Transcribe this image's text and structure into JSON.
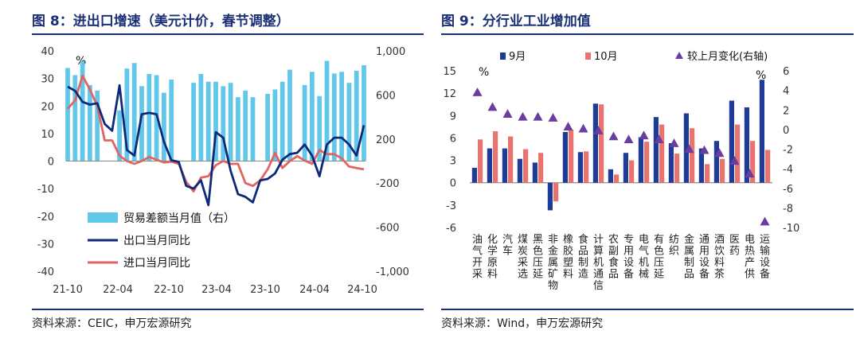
{
  "colors": {
    "title": "#1b2f74",
    "export_line": "#0d2a7a",
    "import_line": "#e06464",
    "trade_bar": "#62c8ea",
    "sep": "#1e3c96",
    "oct": "#e8736f",
    "mom": "#6a3da0"
  },
  "left": {
    "title": "图 8：进出口增速（美元计价，春节调整）",
    "source": "资料来源：CEIC，申万宏源研究",
    "chart_data": {
      "type": "bar+line",
      "unit_label": "%",
      "x_tick_labels": [
        "21-10",
        "22-04",
        "22-10",
        "23-04",
        "23-10",
        "24-04",
        "24-10"
      ],
      "y_left_ticks": [
        "40",
        "30",
        "20",
        "10",
        "0",
        "-10",
        "-20",
        "-30",
        "-40"
      ],
      "y_right_ticks": [
        "1,000",
        "600",
        "200",
        "-200",
        "-600",
        "-1,000"
      ],
      "ylim_left": [
        -40,
        40
      ],
      "ylim_right": [
        -1000,
        1000
      ],
      "legend": [
        "贸易差额当月值（右）",
        "出口当月同比",
        "进口当月同比"
      ],
      "series": [
        {
          "name": "贸易差额当月值（右）",
          "axis": "right",
          "type": "bar",
          "values": [
            845,
            780,
            905,
            690,
            640,
            0,
            0,
            460,
            840,
            890,
            680,
            790,
            780,
            620,
            740,
            0,
            0,
            710,
            790,
            720,
            720,
            680,
            710,
            580,
            640,
            580,
            0,
            610,
            650,
            720,
            830,
            0,
            690,
            810,
            590,
            910,
            795,
            810,
            710,
            820,
            870
          ]
        },
        {
          "name": "出口当月同比",
          "axis": "left",
          "type": "line",
          "values": [
            27,
            25.5,
            21.5,
            20.5,
            21,
            13.5,
            11,
            27.5,
            4,
            2,
            17,
            17.5,
            17,
            7,
            0.3,
            -0.3,
            -9,
            -10,
            -7,
            -16,
            10.5,
            8.5,
            -3.5,
            -12,
            -13,
            -15,
            -7,
            -6.5,
            -4.5,
            0.5,
            2.5,
            3,
            6,
            2,
            -5.5,
            6,
            8.5,
            8.5,
            6,
            2,
            13
          ]
        },
        {
          "name": "进口当月同比",
          "axis": "left",
          "type": "line",
          "values": [
            19,
            22,
            31,
            26,
            20,
            7.5,
            7.5,
            2,
            0,
            -1,
            0,
            1.5,
            0.5,
            -0.5,
            -0.2,
            -1,
            -7.5,
            -11,
            -6,
            -5.5,
            -1.5,
            0,
            -1,
            -1,
            -8,
            -9,
            -7,
            -3,
            3,
            -2.5,
            0,
            1.8,
            0.2,
            -1,
            4,
            2.5,
            2.5,
            1,
            -2,
            -2.5,
            -3
          ]
        }
      ]
    }
  },
  "right": {
    "title": "图 9：分行业工业增加值",
    "source": "资料来源：Wind，申万宏源研究",
    "chart_data": {
      "type": "bar+scatter",
      "unit_label_left": "%",
      "unit_label_right": "%",
      "y_left_ticks": [
        "15",
        "12",
        "9",
        "6",
        "3",
        "0",
        "-3",
        "-6"
      ],
      "y_right_ticks": [
        "6",
        "4",
        "2",
        "0",
        "-2",
        "-4",
        "-6",
        "-8",
        "-10"
      ],
      "ylim_left": [
        -6,
        15
      ],
      "ylim_right": [
        -10,
        6
      ],
      "legend": [
        "9月",
        "10月",
        "较上月变化(右轴)"
      ],
      "categories": [
        "油气开采",
        "化学原料",
        "汽车",
        "煤炭采选",
        "黑色压延",
        "非金属矿物",
        "橡胶塑料",
        "食品制造",
        "计算机通信",
        "农副食品",
        "专用设备",
        "电气机械",
        "有色压延",
        "纺织",
        "金属制品",
        "通用设备",
        "酒饮料茶",
        "医药",
        "电热产供",
        "运输设备"
      ],
      "series": [
        {
          "name": "9月",
          "values": [
            2.0,
            4.6,
            4.6,
            3.2,
            2.7,
            -3.7,
            6.8,
            4.1,
            10.6,
            1.8,
            4.0,
            6.1,
            8.8,
            5.3,
            9.3,
            4.6,
            5.6,
            11.0,
            10.1,
            13.8
          ]
        },
        {
          "name": "10月",
          "values": [
            5.8,
            6.9,
            6.2,
            4.5,
            4.0,
            -2.5,
            7.1,
            4.2,
            10.5,
            1.1,
            3.0,
            5.5,
            7.8,
            3.9,
            7.3,
            2.5,
            3.2,
            7.8,
            5.6,
            4.4
          ]
        },
        {
          "name": "较上月变化(右轴)",
          "values": [
            3.8,
            2.3,
            1.6,
            1.3,
            1.3,
            1.2,
            0.3,
            0.1,
            -0.1,
            -0.7,
            -1.0,
            -0.6,
            -1.0,
            -1.4,
            -2.0,
            -2.1,
            -2.4,
            -3.2,
            -4.5,
            -9.4
          ]
        }
      ]
    }
  }
}
